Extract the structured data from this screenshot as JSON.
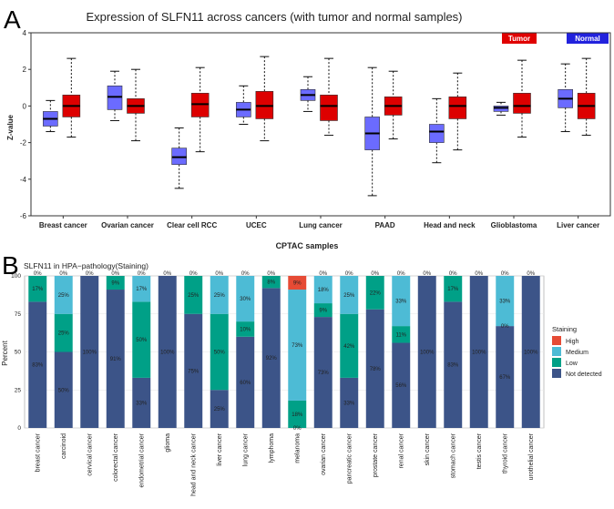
{
  "panel_a": {
    "letter": "A",
    "title": "Expression of SLFN11 across cancers (with tumor and normal samples)",
    "ylabel": "Z-value",
    "xlabel": "CPTAC samples",
    "legend": [
      {
        "label": "Tumor",
        "color": "#e00000"
      },
      {
        "label": "Normal",
        "color": "#2222dd"
      }
    ]
  },
  "panel_b": {
    "letter": "B",
    "title": "SLFN11 in HPA−pathology(Staining)",
    "ylabel": "Percent",
    "legend_title": "Staining",
    "legend": [
      {
        "label": "High",
        "color": "#e64b35"
      },
      {
        "label": "Medium",
        "color": "#4dbbd5"
      },
      {
        "label": "Low",
        "color": "#00a087"
      },
      {
        "label": "Not detected",
        "color": "#3c5488"
      }
    ]
  },
  "chart_data": [
    {
      "type": "boxplot",
      "title": "Expression of SLFN11 across cancers (with tumor and normal samples)",
      "xlabel": "CPTAC samples",
      "ylabel": "Z-value",
      "ylim": [
        -6,
        4
      ],
      "yticks": [
        -6,
        -4,
        -2,
        0,
        2,
        4
      ],
      "categories": [
        "Breast cancer",
        "Ovarian cancer",
        "Clear cell RCC",
        "UCEC",
        "Lung cancer",
        "PAAD",
        "Head and neck",
        "Glioblastoma",
        "Liver cancer"
      ],
      "series": [
        {
          "name": "Normal",
          "color": "#6b6bff",
          "boxes": [
            {
              "min": -1.4,
              "q1": -1.1,
              "median": -0.7,
              "q3": -0.3,
              "max": 0.3
            },
            {
              "min": -0.8,
              "q1": -0.2,
              "median": 0.5,
              "q3": 1.1,
              "max": 1.9
            },
            {
              "min": -4.5,
              "q1": -3.2,
              "median": -2.8,
              "q3": -2.3,
              "max": -1.2
            },
            {
              "min": -1.0,
              "q1": -0.6,
              "median": -0.2,
              "q3": 0.2,
              "max": 1.1
            },
            {
              "min": -0.3,
              "q1": 0.3,
              "median": 0.6,
              "q3": 0.9,
              "max": 1.6
            },
            {
              "min": -4.9,
              "q1": -2.4,
              "median": -1.5,
              "q3": -0.6,
              "max": 2.1
            },
            {
              "min": -3.1,
              "q1": -2.0,
              "median": -1.4,
              "q3": -1.0,
              "max": 0.4
            },
            {
              "min": -0.5,
              "q1": -0.3,
              "median": -0.1,
              "q3": 0.0,
              "max": 0.2
            },
            {
              "min": -1.4,
              "q1": -0.1,
              "median": 0.4,
              "q3": 0.9,
              "max": 2.3
            }
          ]
        },
        {
          "name": "Tumor",
          "color": "#dd0000",
          "boxes": [
            {
              "min": -1.7,
              "q1": -0.6,
              "median": 0.0,
              "q3": 0.6,
              "max": 2.6
            },
            {
              "min": -1.9,
              "q1": -0.4,
              "median": 0.0,
              "q3": 0.4,
              "max": 2.0
            },
            {
              "min": -2.5,
              "q1": -0.6,
              "median": 0.1,
              "q3": 0.7,
              "max": 2.1
            },
            {
              "min": -1.9,
              "q1": -0.7,
              "median": 0.0,
              "q3": 0.8,
              "max": 2.7
            },
            {
              "min": -1.6,
              "q1": -0.8,
              "median": 0.0,
              "q3": 0.6,
              "max": 2.6
            },
            {
              "min": -1.8,
              "q1": -0.5,
              "median": 0.0,
              "q3": 0.5,
              "max": 1.9
            },
            {
              "min": -2.4,
              "q1": -0.7,
              "median": 0.0,
              "q3": 0.5,
              "max": 1.8
            },
            {
              "min": -1.7,
              "q1": -0.4,
              "median": 0.0,
              "q3": 0.7,
              "max": 2.5
            },
            {
              "min": -1.6,
              "q1": -0.7,
              "median": 0.0,
              "q3": 0.7,
              "max": 2.6
            }
          ]
        }
      ]
    },
    {
      "type": "stacked-bar",
      "title": "SLFN11 in HPA−pathology(Staining)",
      "ylabel": "Percent",
      "ylim": [
        0,
        100
      ],
      "yticks": [
        0,
        25,
        50,
        75,
        100
      ],
      "categories": [
        "breast cancer",
        "carcinoid",
        "cervical cancer",
        "colorectal cancer",
        "endometrial cancer",
        "glioma",
        "head and neck cancer",
        "liver cancer",
        "lung cancer",
        "lymphoma",
        "melanoma",
        "ovarian cancer",
        "pancreatic cancer",
        "prostate cancer",
        "renal cancer",
        "skin cancer",
        "stomach cancer",
        "testis cancer",
        "thyroid cancer",
        "urothelial cancer"
      ],
      "series": [
        {
          "name": "Not detected",
          "color": "#3c5488",
          "values": [
            83,
            50,
            100,
            91,
            33,
            100,
            75,
            25,
            60,
            92,
            0,
            73,
            33,
            78,
            56,
            100,
            83,
            100,
            67,
            100
          ]
        },
        {
          "name": "Low",
          "color": "#00a087",
          "values": [
            17,
            25,
            0,
            9,
            50,
            0,
            25,
            50,
            10,
            8,
            18,
            9,
            42,
            22,
            11,
            0,
            17,
            0,
            0,
            0
          ]
        },
        {
          "name": "Medium",
          "color": "#4dbbd5",
          "values": [
            0,
            25,
            0,
            0,
            17,
            0,
            0,
            25,
            30,
            0,
            73,
            18,
            25,
            0,
            33,
            0,
            0,
            0,
            33,
            0
          ]
        },
        {
          "name": "High",
          "color": "#e64b35",
          "values": [
            0,
            0,
            0,
            0,
            0,
            0,
            0,
            0,
            0,
            0,
            9,
            0,
            0,
            0,
            0,
            0,
            0,
            0,
            0,
            0
          ]
        }
      ],
      "labels": [
        [
          "83%",
          "17%",
          "",
          "0%"
        ],
        [
          "50%",
          "25%",
          "25%",
          "0%"
        ],
        [
          "100%",
          "",
          "",
          "0%"
        ],
        [
          "91%",
          "9%",
          "",
          "0%"
        ],
        [
          "33%",
          "50%",
          "17%",
          "0%"
        ],
        [
          "100%",
          "",
          "",
          "0%"
        ],
        [
          "75%",
          "25%",
          "",
          "0%"
        ],
        [
          "25%",
          "50%",
          "25%",
          "0%"
        ],
        [
          "60%",
          "10%",
          "30%",
          "0%"
        ],
        [
          "92%",
          "8%",
          "",
          "0%"
        ],
        [
          "0%",
          "18%",
          "73%",
          "9%"
        ],
        [
          "73%",
          "9%",
          "18%",
          "0%"
        ],
        [
          "33%",
          "42%",
          "25%",
          "0%"
        ],
        [
          "78%",
          "22%",
          "",
          "0%"
        ],
        [
          "56%",
          "11%",
          "33%",
          "0%"
        ],
        [
          "100%",
          "",
          "",
          "0%"
        ],
        [
          "83%",
          "17%",
          "",
          "0%"
        ],
        [
          "100%",
          "",
          "",
          "0%"
        ],
        [
          "67%",
          "0%",
          "33%",
          "0%"
        ],
        [
          "100%",
          "",
          "",
          "0%"
        ]
      ]
    }
  ]
}
